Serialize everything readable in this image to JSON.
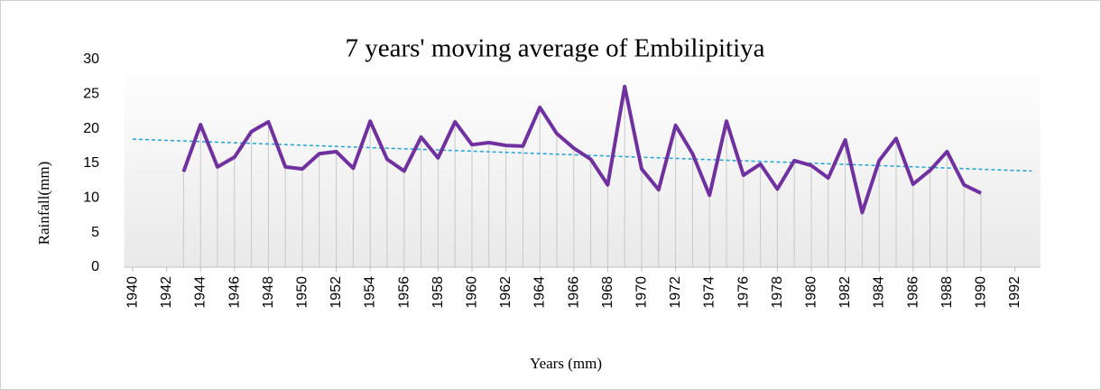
{
  "chart_data": {
    "type": "line",
    "title": "7 years' moving average of Embilipitiya",
    "x_label": "Years (mm)",
    "y_label": "Rainfall(mm)",
    "x": [
      1943,
      1944,
      1945,
      1946,
      1947,
      1948,
      1949,
      1950,
      1951,
      1952,
      1953,
      1954,
      1955,
      1956,
      1957,
      1958,
      1959,
      1960,
      1961,
      1962,
      1963,
      1964,
      1965,
      1966,
      1967,
      1968,
      1969,
      1970,
      1971,
      1972,
      1973,
      1974,
      1975,
      1976,
      1977,
      1978,
      1979,
      1980,
      1981,
      1982,
      1983,
      1984,
      1985,
      1986,
      1987,
      1988,
      1989,
      1990
    ],
    "values": [
      13.8,
      20.6,
      14.5,
      15.9,
      19.6,
      21.0,
      14.5,
      14.2,
      16.4,
      16.7,
      14.3,
      21.1,
      15.6,
      13.9,
      18.8,
      15.8,
      21.0,
      17.7,
      18.0,
      17.6,
      17.5,
      23.1,
      19.3,
      17.2,
      15.6,
      11.9,
      26.1,
      14.2,
      11.2,
      20.5,
      16.4,
      10.4,
      21.1,
      13.3,
      14.9,
      11.3,
      15.4,
      14.7,
      12.9,
      18.4,
      7.9,
      15.4,
      18.6,
      12.0,
      14.0,
      16.7,
      11.9,
      10.7
    ],
    "color": "#7030a0",
    "drop_lines": true,
    "trendline": {
      "color": "#1fa3d8",
      "x": [
        1940,
        1993
      ],
      "values": [
        18.5,
        13.9
      ]
    },
    "xlim": [
      1939.5,
      1993.5
    ],
    "xticks": [
      1940,
      1942,
      1944,
      1946,
      1948,
      1950,
      1952,
      1954,
      1956,
      1958,
      1960,
      1962,
      1964,
      1966,
      1968,
      1970,
      1972,
      1974,
      1976,
      1978,
      1980,
      1982,
      1984,
      1986,
      1988,
      1990,
      1992
    ],
    "ylim": [
      0,
      30
    ],
    "yticks": [
      0,
      5,
      10,
      15,
      20,
      25,
      30
    ]
  }
}
